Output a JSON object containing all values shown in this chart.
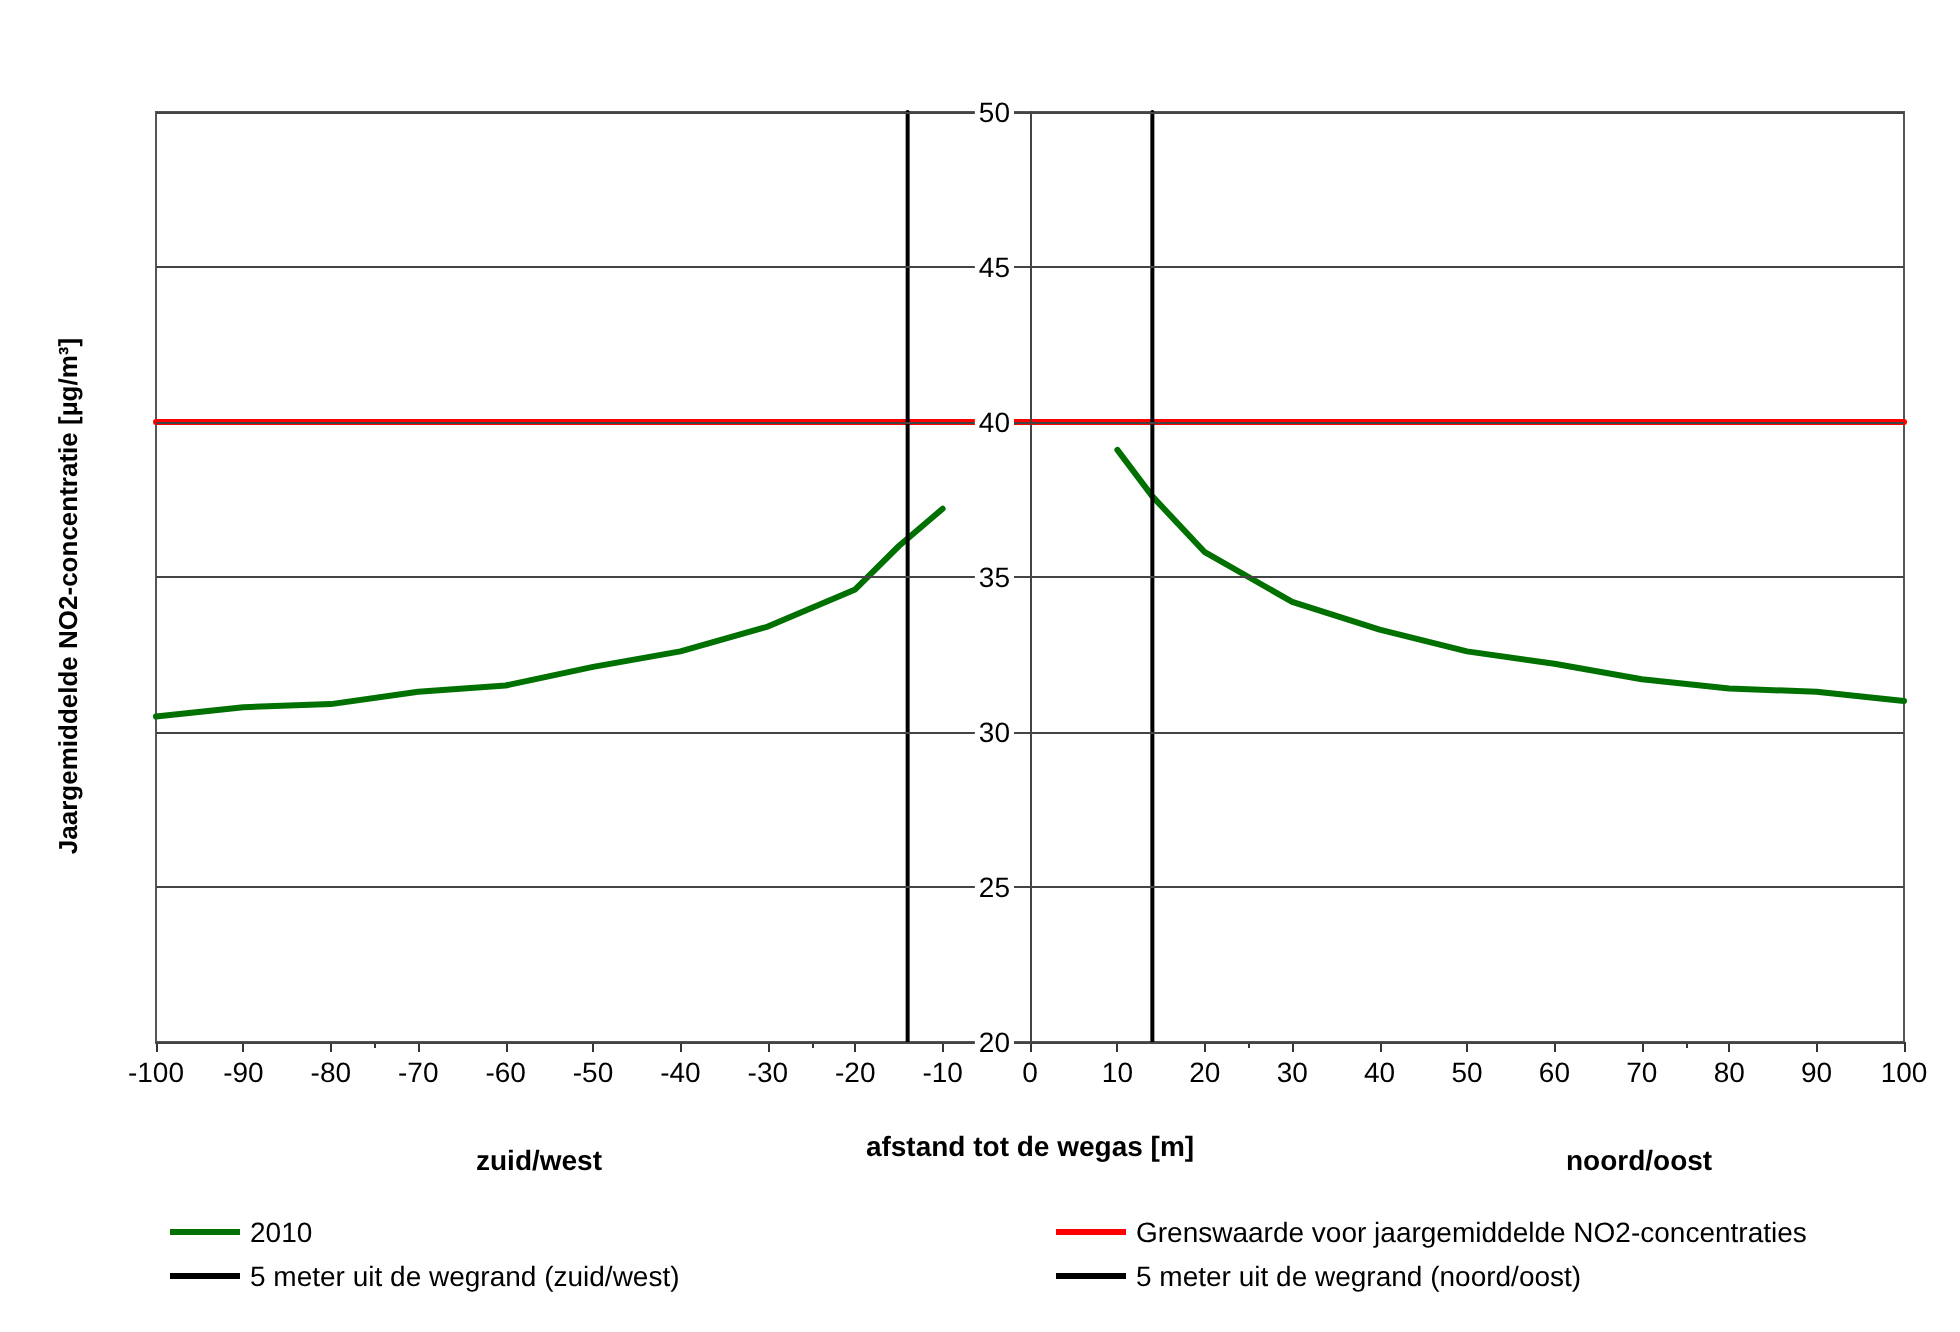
{
  "chart_data": {
    "type": "line",
    "xlabel": "afstand tot de wegas [m]",
    "ylabel": "Jaargemiddelde NO2-concentratie [µg/m³]",
    "annotations": [
      "zuid/west",
      "noord/oost"
    ],
    "xlim": [
      -100,
      100
    ],
    "xticks": [
      -100,
      -90,
      -80,
      -70,
      -60,
      -50,
      -40,
      -30,
      -20,
      -10,
      0,
      10,
      20,
      30,
      40,
      50,
      60,
      70,
      80,
      90,
      100
    ],
    "ylim": [
      20,
      50
    ],
    "yticks": [
      20,
      25,
      30,
      35,
      40,
      45,
      50
    ],
    "grid": "y",
    "legend": "bottom",
    "marker": "none",
    "series": [
      {
        "name": "2010",
        "color": "#007000",
        "x": [
          -100,
          -90,
          -80,
          -70,
          -60,
          -50,
          -40,
          -30,
          -20,
          -15,
          -10,
          0,
          10,
          14,
          20,
          25,
          30,
          40,
          50,
          60,
          70,
          80,
          90,
          100
        ],
        "values": [
          30.5,
          30.8,
          30.9,
          31.3,
          31.5,
          32.1,
          32.6,
          33.4,
          34.6,
          36,
          37.2,
          null,
          39.1,
          37.6,
          35.8,
          35,
          34.2,
          33.3,
          32.6,
          32.2,
          31.7,
          31.4,
          31.3,
          31
        ]
      },
      {
        "name": "Grenswaarde voor jaargemiddelde NO2-concentraties",
        "color": "#ff0000",
        "x": [
          -100,
          100
        ],
        "values": [
          40,
          40
        ]
      },
      {
        "name": "5 meter uit de wegrand (zuid/west)",
        "color": "#000000",
        "x": [
          -14,
          -14
        ],
        "values": [
          20,
          50
        ]
      },
      {
        "name": "5 meter uit de wegrand (noord/oost)",
        "color": "#000000",
        "x": [
          14,
          14
        ],
        "values": [
          20,
          50
        ]
      }
    ]
  }
}
